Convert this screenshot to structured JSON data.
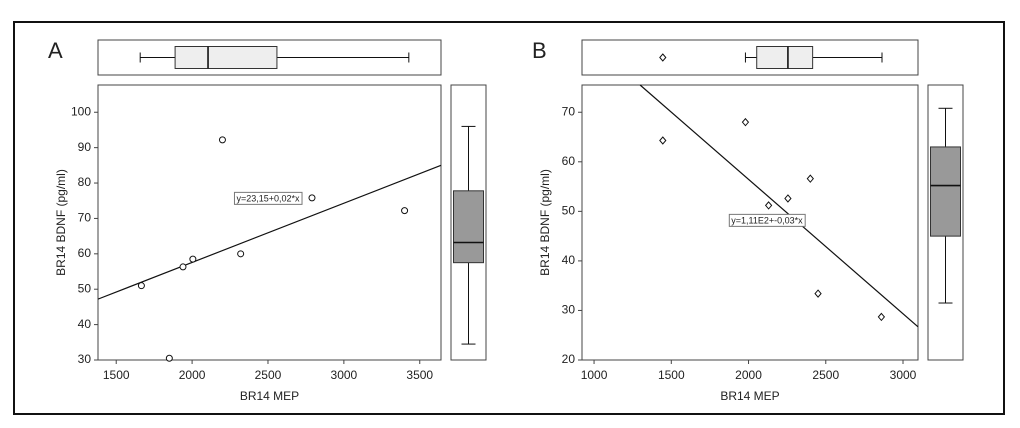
{
  "chart_data": [
    {
      "type": "scatter",
      "label": "A",
      "x_label": "BR14 MEP",
      "y_label": "BR14 BDNF (pg/ml)",
      "marker": "circle",
      "xlim": [
        1380,
        3640
      ],
      "ylim": [
        30,
        107.7
      ],
      "xticks": [
        1500,
        2000,
        2500,
        3000,
        3500
      ],
      "yticks": [
        30,
        40,
        50,
        60,
        70,
        80,
        90,
        100
      ],
      "x": [
        1666,
        1850,
        1940,
        2005,
        2200,
        2320,
        2790,
        3400
      ],
      "y": [
        51,
        30.5,
        56.3,
        58.5,
        92.2,
        60,
        75.8,
        72.2
      ],
      "fit_label": "y=23,15+0,02*x",
      "fit_line": {
        "x": [
          1380,
          3640
        ],
        "y": [
          47.2,
          85
        ]
      },
      "x_box": {
        "whisker_low": 1658,
        "q1": 1888,
        "median": 2105,
        "q3": 2559,
        "whisker_high": 3428,
        "outliers": []
      },
      "y_box": {
        "whisker_low": 34.5,
        "q1": 57.5,
        "median": 63.2,
        "q3": 77.8,
        "whisker_high": 96,
        "outliers": []
      },
      "x_box_color": "#eeeeee",
      "y_box_color": "#999999"
    },
    {
      "type": "scatter",
      "label": "B",
      "x_label": "BR14 MEP",
      "y_label": "BR14 BDNF (pg/ml)",
      "marker": "diamond",
      "xlim": [
        922,
        3097
      ],
      "ylim": [
        20,
        75.5
      ],
      "xticks": [
        1000,
        1500,
        2000,
        2500,
        3000
      ],
      "yticks": [
        20,
        30,
        40,
        50,
        60,
        70
      ],
      "x": [
        1445,
        1980,
        2130,
        2255,
        2400,
        2450,
        2860
      ],
      "y": [
        64.3,
        68,
        51.2,
        52.6,
        56.6,
        33.4,
        28.7
      ],
      "fit_label": "y=1,11E2+-0,03*x",
      "fit_line": {
        "x": [
          1298,
          3097
        ],
        "y": [
          75.5,
          26.7
        ]
      },
      "x_box": {
        "whisker_low": 1980,
        "q1": 2053,
        "median": 2255,
        "q3": 2415,
        "whisker_high": 2864,
        "outliers": [
          1445
        ]
      },
      "y_box": {
        "whisker_low": 31.5,
        "q1": 45,
        "median": 55.2,
        "q3": 63,
        "whisker_high": 70.8,
        "outliers": []
      },
      "x_box_color": "#eeeeee",
      "y_box_color": "#999999"
    }
  ]
}
